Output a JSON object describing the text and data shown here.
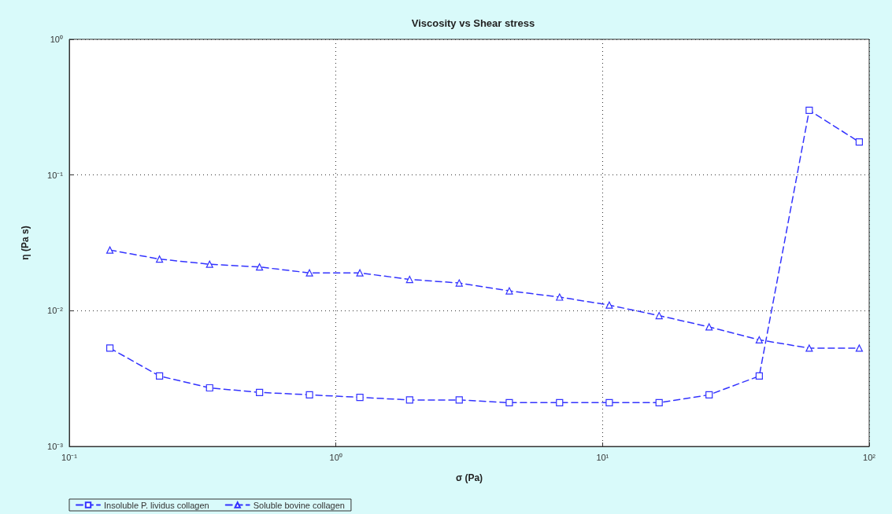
{
  "chart_data": {
    "type": "line",
    "title": "Viscosity vs Shear stress",
    "xlabel": "σ (Pa)",
    "ylabel": "η (Pa s)",
    "x": [
      0.142,
      0.218,
      0.336,
      0.517,
      0.796,
      1.23,
      1.89,
      2.9,
      4.47,
      6.9,
      10.6,
      16.3,
      25.1,
      38.7,
      59.6,
      91.8
    ],
    "series": [
      {
        "name": "Insoluble P. lividus collagen",
        "color": "#3333ff",
        "marker": "square",
        "values": [
          0.0053,
          0.0033,
          0.0027,
          0.0025,
          0.0024,
          0.0023,
          0.0022,
          0.0022,
          0.0021,
          0.0021,
          0.0021,
          0.0021,
          0.0024,
          0.0033,
          0.3,
          0.175
        ]
      },
      {
        "name": "Soluble bovine collagen",
        "color": "#3333ff",
        "marker": "triangle",
        "values": [
          0.028,
          0.024,
          0.022,
          0.021,
          0.019,
          0.019,
          0.017,
          0.016,
          0.014,
          0.0126,
          0.011,
          0.0092,
          0.0076,
          0.0061,
          0.0053,
          0.0053
        ]
      }
    ],
    "log": "xy",
    "xlim": [
      0.1,
      100
    ],
    "ylim": [
      0.001,
      1
    ],
    "xticks": [
      {
        "value": 0.1,
        "label": "10⁻¹"
      },
      {
        "value": 1,
        "label": "10⁰"
      },
      {
        "value": 10,
        "label": "10¹"
      },
      {
        "value": 100,
        "label": "10²"
      }
    ],
    "yticks": [
      {
        "value": 0.001,
        "label": "10⁻³"
      },
      {
        "value": 0.01,
        "label": "10⁻²"
      },
      {
        "value": 0.1,
        "label": "10⁻¹"
      },
      {
        "value": 1,
        "label": "10⁰"
      }
    ],
    "grid": true,
    "legend": "bottom left",
    "line_style": "dashed"
  }
}
